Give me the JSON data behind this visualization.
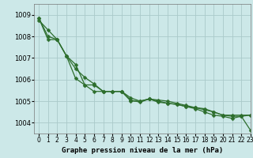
{
  "title": "Graphe pression niveau de la mer (hPa)",
  "xlim": [
    -0.5,
    23
  ],
  "ylim": [
    1003.5,
    1009.5
  ],
  "yticks": [
    1004,
    1005,
    1006,
    1007,
    1008,
    1009
  ],
  "xticks": [
    0,
    1,
    2,
    3,
    4,
    5,
    6,
    7,
    8,
    9,
    10,
    11,
    12,
    13,
    14,
    15,
    16,
    17,
    18,
    19,
    20,
    21,
    22,
    23
  ],
  "bg_color": "#cce8e8",
  "grid_color": "#aacaca",
  "line_color": "#2d6e2d",
  "line1_x": [
    0,
    1,
    2,
    3,
    4,
    5,
    6,
    7,
    8,
    9,
    10,
    11,
    12,
    13,
    14,
    15,
    16,
    17,
    18,
    19,
    20,
    21,
    22,
    23
  ],
  "line1_y": [
    1008.75,
    1008.3,
    1007.85,
    1007.1,
    1006.5,
    1006.1,
    1005.8,
    1005.45,
    1005.45,
    1005.45,
    1005.05,
    1004.95,
    1005.1,
    1004.95,
    1004.9,
    1004.85,
    1004.75,
    1004.7,
    1004.6,
    1004.5,
    1004.35,
    1004.35,
    1004.35,
    1004.35
  ],
  "line2_x": [
    0,
    1,
    2,
    3,
    4,
    5,
    6,
    7,
    8,
    9,
    10,
    11,
    12,
    13,
    14,
    15,
    16,
    17,
    18,
    19,
    20,
    21,
    22,
    23
  ],
  "line2_y": [
    1008.85,
    1007.85,
    1007.85,
    1007.1,
    1006.7,
    1005.75,
    1005.75,
    1005.45,
    1005.45,
    1005.45,
    1005.15,
    1005.0,
    1005.1,
    1005.05,
    1005.0,
    1004.9,
    1004.8,
    1004.7,
    1004.65,
    1004.5,
    1004.35,
    1004.3,
    1004.3,
    1004.35
  ],
  "line3_x": [
    0,
    1,
    2,
    3,
    4,
    5,
    6,
    7,
    8,
    9,
    10,
    11,
    12,
    13,
    14,
    15,
    16,
    17,
    18,
    19,
    20,
    21,
    22,
    23
  ],
  "line3_y": [
    1008.85,
    1008.0,
    1007.85,
    1007.1,
    1006.05,
    1005.75,
    1005.45,
    1005.45,
    1005.45,
    1005.45,
    1005.0,
    1005.0,
    1005.1,
    1005.0,
    1004.9,
    1004.85,
    1004.75,
    1004.65,
    1004.5,
    1004.35,
    1004.3,
    1004.2,
    1004.3,
    1003.65
  ],
  "marker_size": 2.5,
  "linewidth": 0.9,
  "tick_fontsize": 5.5,
  "xlabel_fontsize": 6.5
}
